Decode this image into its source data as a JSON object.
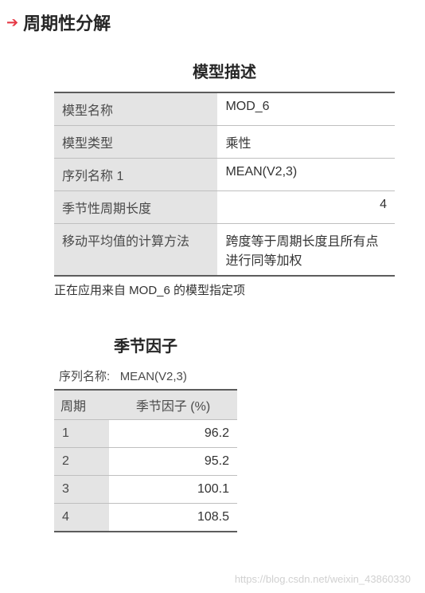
{
  "header": {
    "title": "周期性分解"
  },
  "model_desc": {
    "title": "模型描述",
    "rows": [
      {
        "label": "模型名称",
        "value": "MOD_6",
        "align": "left"
      },
      {
        "label": "模型类型",
        "value": "乘性",
        "align": "left"
      },
      {
        "label": "序列名称    1",
        "value": "MEAN(V2,3)",
        "align": "left"
      },
      {
        "label": "季节性周期长度",
        "value": "4",
        "align": "right"
      },
      {
        "label": "移动平均值的计算方法",
        "value": "跨度等于周期长度且所有点进行同等加权",
        "align": "left"
      }
    ],
    "caption": "正在应用来自 MOD_6 的模型指定项"
  },
  "seasonal": {
    "title": "季节因子",
    "series_label": "序列名称:",
    "series_value": "MEAN(V2,3)",
    "col_period": "周期",
    "col_factor": "季节因子 (%)",
    "rows": [
      {
        "period": "1",
        "factor": "96.2"
      },
      {
        "period": "2",
        "factor": "95.2"
      },
      {
        "period": "3",
        "factor": "100.1"
      },
      {
        "period": "4",
        "factor": "108.5"
      }
    ]
  },
  "watermark": "https://blog.csdn.net/weixin_43860330"
}
